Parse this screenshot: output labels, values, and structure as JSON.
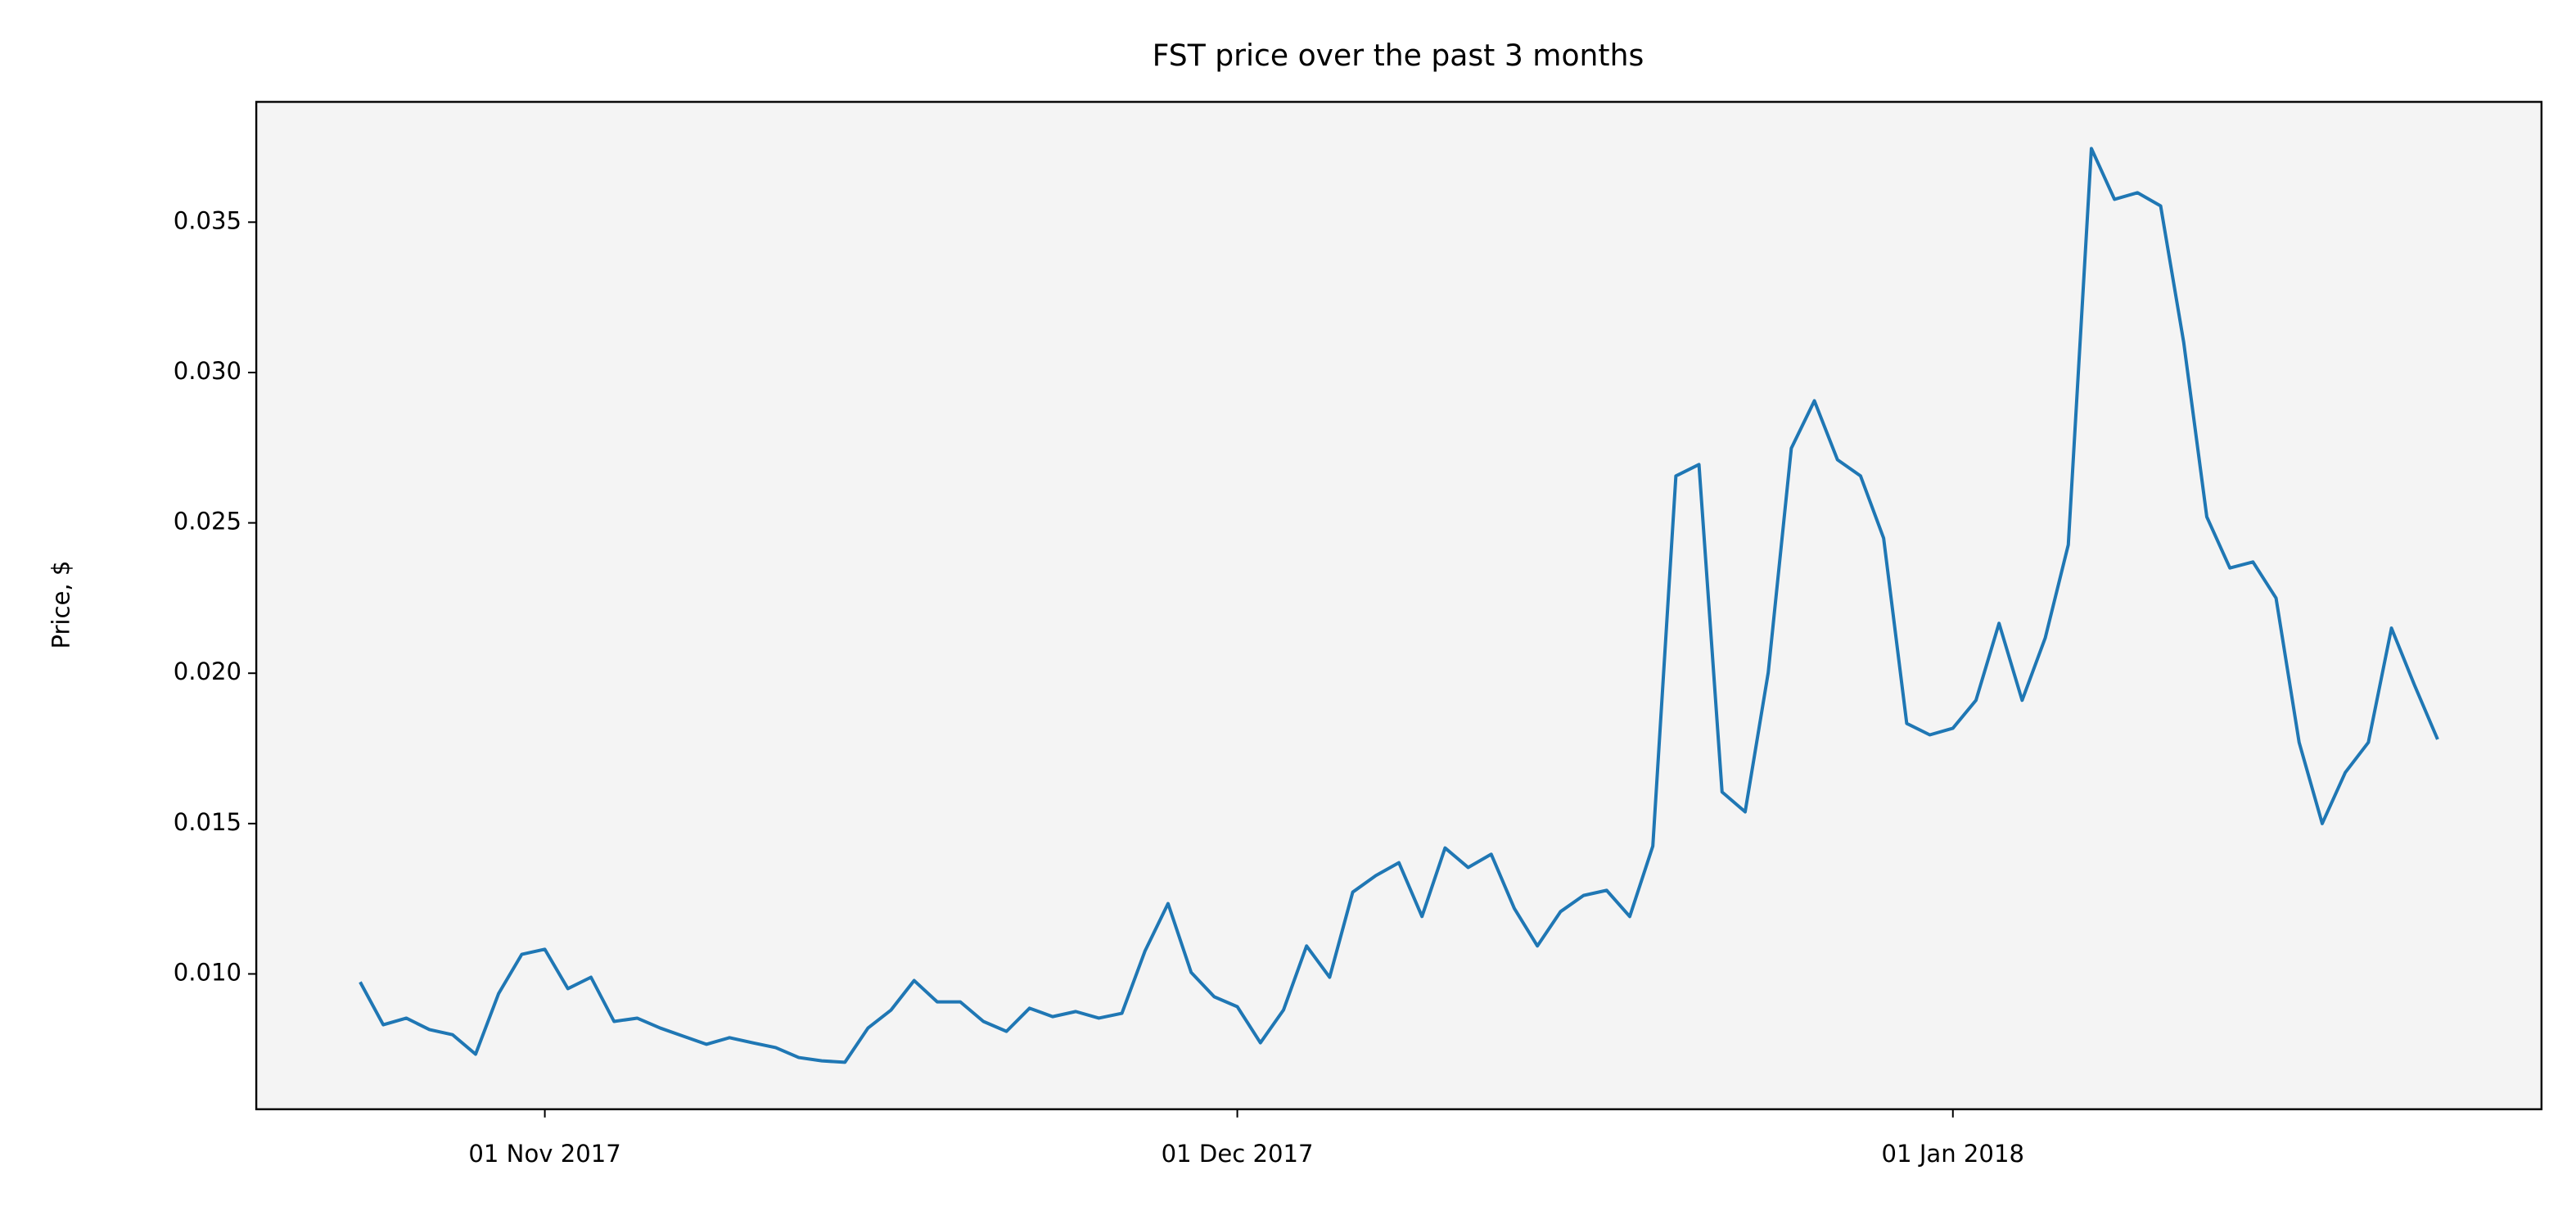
{
  "chart_data": {
    "type": "line",
    "title": "FST price over the past 3 months",
    "y_label": "Price, $",
    "x": [
      "2017-10-24",
      "2017-10-25",
      "2017-10-26",
      "2017-10-27",
      "2017-10-28",
      "2017-10-29",
      "2017-10-30",
      "2017-10-31",
      "2017-11-01",
      "2017-11-02",
      "2017-11-03",
      "2017-11-04",
      "2017-11-05",
      "2017-11-06",
      "2017-11-07",
      "2017-11-08",
      "2017-11-09",
      "2017-11-10",
      "2017-11-11",
      "2017-11-12",
      "2017-11-13",
      "2017-11-14",
      "2017-11-15",
      "2017-11-16",
      "2017-11-17",
      "2017-11-18",
      "2017-11-19",
      "2017-11-20",
      "2017-11-21",
      "2017-11-22",
      "2017-11-23",
      "2017-11-24",
      "2017-11-25",
      "2017-11-26",
      "2017-11-27",
      "2017-11-28",
      "2017-11-29",
      "2017-11-30",
      "2017-12-01",
      "2017-12-02",
      "2017-12-03",
      "2017-12-04",
      "2017-12-05",
      "2017-12-06",
      "2017-12-07",
      "2017-12-08",
      "2017-12-09",
      "2017-12-10",
      "2017-12-11",
      "2017-12-12",
      "2017-12-13",
      "2017-12-14",
      "2017-12-15",
      "2017-12-16",
      "2017-12-17",
      "2017-12-18",
      "2017-12-19",
      "2017-12-20",
      "2017-12-21",
      "2017-12-22",
      "2017-12-23",
      "2017-12-24",
      "2017-12-25",
      "2017-12-26",
      "2017-12-27",
      "2017-12-28",
      "2017-12-29",
      "2017-12-30",
      "2017-12-31",
      "2018-01-01",
      "2018-01-02",
      "2018-01-03",
      "2018-01-04",
      "2018-01-05",
      "2018-01-06",
      "2018-01-07",
      "2018-01-08",
      "2018-01-09",
      "2018-01-10",
      "2018-01-11",
      "2018-01-12",
      "2018-01-13",
      "2018-01-14",
      "2018-01-15",
      "2018-01-16",
      "2018-01-17",
      "2018-01-18",
      "2018-01-19",
      "2018-01-20",
      "2018-01-21",
      "2018-01-22"
    ],
    "series": [
      {
        "name": "FST",
        "color": "#1f77b4",
        "values": [
          0.00973,
          0.00831,
          0.00853,
          0.00815,
          0.00798,
          0.00733,
          0.00935,
          0.01065,
          0.01082,
          0.00951,
          0.00989,
          0.00842,
          0.00853,
          0.0082,
          0.00793,
          0.00766,
          0.00788,
          0.00771,
          0.00755,
          0.00722,
          0.00711,
          0.00706,
          0.0082,
          0.0088,
          0.00978,
          0.00907,
          0.00907,
          0.00842,
          0.00809,
          0.00886,
          0.00858,
          0.00875,
          0.00853,
          0.00869,
          0.01076,
          0.01234,
          0.01005,
          0.00924,
          0.00891,
          0.00771,
          0.0088,
          0.01093,
          0.00989,
          0.01272,
          0.01327,
          0.0137,
          0.01191,
          0.01419,
          0.01354,
          0.01398,
          0.01218,
          0.01093,
          0.01207,
          0.01261,
          0.01278,
          0.01191,
          0.01425,
          0.02656,
          0.02694,
          0.01605,
          0.01539,
          0.02002,
          0.02748,
          0.02906,
          0.0271,
          0.02656,
          0.02449,
          0.01833,
          0.01795,
          0.01817,
          0.0191,
          0.02166,
          0.0191,
          0.02117,
          0.02427,
          0.03745,
          0.03576,
          0.03598,
          0.03554,
          0.031,
          0.0252,
          0.0235,
          0.0237,
          0.0225,
          0.0177,
          0.015,
          0.0167,
          0.0177,
          0.0215,
          0.0196,
          0.0178
        ]
      }
    ],
    "xlim": [
      "2017-10-19T12:00:00Z",
      "2018-01-26T12:00:00Z"
    ],
    "xticks": [
      {
        "value": "2017-11-01",
        "label": "01 Nov 2017"
      },
      {
        "value": "2017-12-01",
        "label": "01 Dec 2017"
      },
      {
        "value": "2018-01-01",
        "label": "01 Jan 2018"
      }
    ],
    "ylim": [
      0.0055,
      0.039
    ],
    "yticks": [
      {
        "value": 0.01,
        "label": "0.010"
      },
      {
        "value": 0.015,
        "label": "0.015"
      },
      {
        "value": 0.02,
        "label": "0.020"
      },
      {
        "value": 0.025,
        "label": "0.025"
      },
      {
        "value": 0.03,
        "label": "0.030"
      },
      {
        "value": 0.035,
        "label": "0.035"
      }
    ],
    "background": "#f4f4f4"
  }
}
